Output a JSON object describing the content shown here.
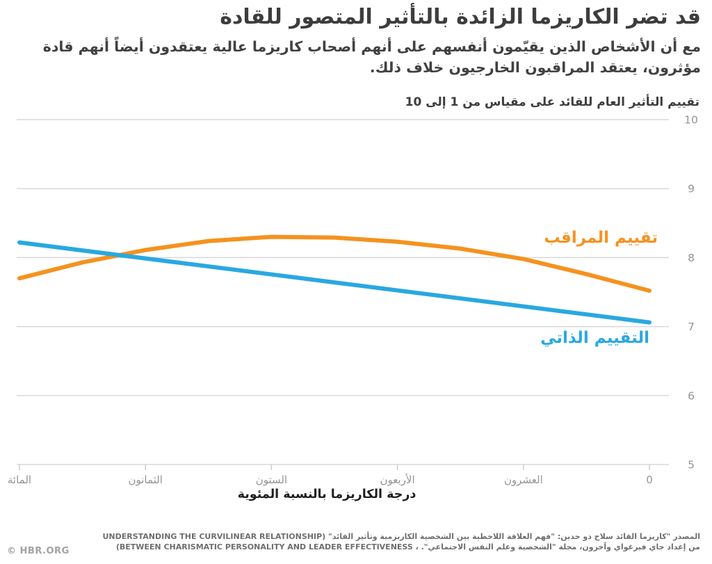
{
  "header": {
    "title": "قد تضر الكاريزما الزائدة بالتأثير المتصور للقادة",
    "subtitle_lines": [
      "مع أن الأشخاص الذين يقيّمون أنفسهم على أنهم أصحاب كاريزما عالية يعتقدون أيضاً أنهم قادة",
      "مؤثرون، يعتقد المراقبون الخارجيون خلاف ذلك."
    ]
  },
  "chart_data": {
    "type": "line",
    "title": "تقييم التأثير العام للقائد على مقياس من 1 إلى 10",
    "xlabel": "درجة الكاريزما بالنسبة المئوية",
    "x_axis": {
      "min": 0,
      "max": 100,
      "direction": "zero-at-right",
      "ticks": [
        {
          "value": 100,
          "label": "المائة"
        },
        {
          "value": 80,
          "label": "الثمانون"
        },
        {
          "value": 60,
          "label": "الستون"
        },
        {
          "value": 40,
          "label": "الأربعون"
        },
        {
          "value": 20,
          "label": "العشرون"
        },
        {
          "value": 0,
          "label": "0"
        }
      ]
    },
    "y_axis": {
      "min": 5,
      "max": 10,
      "side": "right",
      "ticks": [
        10,
        9,
        8,
        7,
        6,
        5
      ]
    },
    "grid": "horizontal",
    "legend_position": "inline-right",
    "style": {
      "grid_color": "#d9d9d9",
      "tick_color": "#cccccc",
      "tick_label_color": "#949494"
    },
    "series": [
      {
        "name": "observer-rating",
        "label": "تقييم المراقب",
        "color": "#F5921E",
        "points": [
          [
            0,
            7.52
          ],
          [
            10,
            7.76
          ],
          [
            20,
            7.98
          ],
          [
            30,
            8.13
          ],
          [
            40,
            8.23
          ],
          [
            50,
            8.29
          ],
          [
            60,
            8.3
          ],
          [
            70,
            8.24
          ],
          [
            80,
            8.11
          ],
          [
            90,
            7.93
          ],
          [
            100,
            7.7
          ]
        ]
      },
      {
        "name": "self-rating",
        "label": "التقييم الذاتي",
        "color": "#29A8E0",
        "points": [
          [
            0,
            7.06
          ],
          [
            50,
            7.64
          ],
          [
            100,
            8.22
          ]
        ]
      }
    ]
  },
  "footer": {
    "copyright": "© HBR.ORG",
    "source_lines": [
      {
        "latin": "UNDERSTANDING THE CURVILINEAR RELATIONSHIP)",
        "arabic": "المصدر \"كاريزما القائد سلاح ذو حدين: \"فهم العلاقة اللاخطية بين الشخصية الكاريزمية وتأثير القائد\""
      },
      {
        "latin": "(BETWEEN CHARISMATIC PERSONALITY AND LEADER EFFECTIVENESS ،",
        "arabic": "من إعداد جاي فيرغواي وآخرون، مجلة \"الشخصية وعلم النفس الاجتماعي\"."
      }
    ]
  }
}
